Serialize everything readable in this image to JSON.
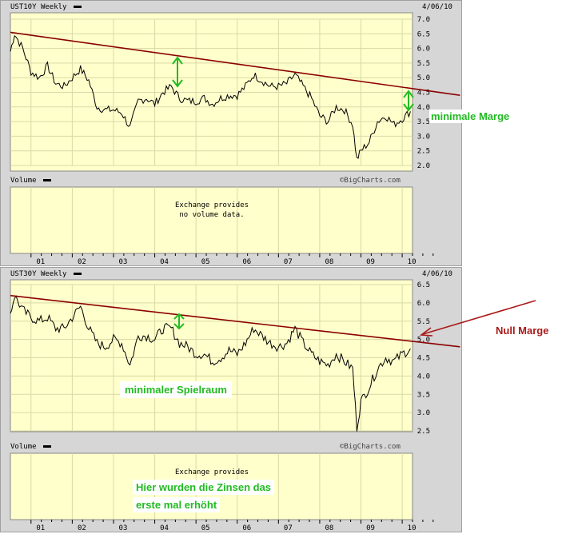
{
  "top_chart": {
    "symbol": "UST10Y",
    "period": "Weekly",
    "date": "4/06/10",
    "volume_label": "Volume",
    "brand": "©BigCharts.com",
    "no_volume_line1": "Exchange provides",
    "no_volume_line2": "no volume data."
  },
  "bottom_chart": {
    "symbol": "UST30Y",
    "period": "Weekly",
    "date": "4/06/10",
    "volume_label": "Volume",
    "brand": "©BigCharts.com",
    "no_volume_line1": "Exchange provides"
  },
  "annotations": {
    "minimale_marge": "minimale Marge",
    "null_marge": "Null Marge",
    "minimaler_spielraum": "minimaler Spielraum",
    "zinsen_line1": "Hier wurden die Zinsen das",
    "zinsen_line2": "erste mal erhöht"
  },
  "colors": {
    "plot_bg": "#ffffcc",
    "grid": "#d9d9a6",
    "price": "#000000",
    "trendline": "#8b0000",
    "arrow_green": "#22bb22",
    "annotation_red": "#aa1a1a"
  },
  "chart_data": [
    {
      "type": "line",
      "title": "UST10Y Weekly",
      "x_ticks": [
        "01",
        "02",
        "03",
        "04",
        "05",
        "06",
        "07",
        "08",
        "09",
        "10"
      ],
      "ylim": [
        2.0,
        7.0
      ],
      "yticks": [
        2.0,
        2.5,
        3.0,
        3.5,
        4.0,
        4.5,
        5.0,
        5.5,
        6.0,
        6.5,
        7.0
      ],
      "grid": true,
      "x": [
        2000.5,
        2000.6,
        2000.8,
        2001.0,
        2001.2,
        2001.4,
        2001.6,
        2001.8,
        2002.0,
        2002.2,
        2002.4,
        2002.6,
        2002.8,
        2003.0,
        2003.2,
        2003.4,
        2003.6,
        2003.8,
        2004.0,
        2004.2,
        2004.4,
        2004.6,
        2004.8,
        2005.0,
        2005.2,
        2005.4,
        2005.6,
        2005.8,
        2006.0,
        2006.2,
        2006.4,
        2006.6,
        2006.8,
        2007.0,
        2007.2,
        2007.4,
        2007.6,
        2007.8,
        2008.0,
        2008.2,
        2008.4,
        2008.6,
        2008.8,
        2008.9,
        2009.0,
        2009.2,
        2009.4,
        2009.6,
        2009.8,
        2010.0,
        2010.2
      ],
      "values": [
        5.9,
        6.5,
        6.0,
        5.2,
        5.0,
        5.4,
        4.8,
        4.7,
        5.0,
        5.3,
        4.9,
        4.0,
        3.9,
        3.9,
        3.8,
        3.3,
        4.2,
        4.3,
        4.1,
        4.5,
        4.7,
        4.3,
        4.2,
        4.2,
        4.3,
        4.1,
        4.3,
        4.4,
        4.4,
        4.7,
        5.1,
        4.9,
        4.7,
        4.7,
        4.8,
        5.1,
        4.7,
        4.3,
        3.7,
        3.5,
        4.0,
        3.9,
        3.4,
        2.2,
        2.5,
        2.8,
        3.5,
        3.7,
        3.4,
        3.6,
        3.85
      ],
      "trendline": {
        "x": [
          2000.5,
          2011.4
        ],
        "y": [
          6.55,
          4.4
        ]
      }
    },
    {
      "type": "line",
      "title": "UST30Y Weekly",
      "x_ticks": [
        "01",
        "02",
        "03",
        "04",
        "05",
        "06",
        "07",
        "08",
        "09",
        "10"
      ],
      "ylim": [
        2.5,
        6.5
      ],
      "yticks": [
        2.5,
        3.0,
        3.5,
        4.0,
        4.5,
        5.0,
        5.5,
        6.0,
        6.5
      ],
      "grid": true,
      "x": [
        2000.5,
        2000.6,
        2000.8,
        2001.0,
        2001.2,
        2001.4,
        2001.6,
        2001.8,
        2002.0,
        2002.2,
        2002.4,
        2002.6,
        2002.8,
        2003.0,
        2003.2,
        2003.4,
        2003.6,
        2003.8,
        2004.0,
        2004.2,
        2004.4,
        2004.6,
        2004.8,
        2005.0,
        2005.2,
        2005.4,
        2005.6,
        2005.8,
        2006.0,
        2006.2,
        2006.4,
        2006.6,
        2006.8,
        2007.0,
        2007.2,
        2007.4,
        2007.6,
        2007.8,
        2008.0,
        2008.2,
        2008.4,
        2008.6,
        2008.8,
        2008.9,
        2009.0,
        2009.2,
        2009.4,
        2009.6,
        2009.8,
        2010.0,
        2010.2
      ],
      "values": [
        5.7,
        6.2,
        5.8,
        5.6,
        5.5,
        5.6,
        5.3,
        5.3,
        5.6,
        5.9,
        5.3,
        4.9,
        4.8,
        5.0,
        4.9,
        4.3,
        5.1,
        5.1,
        5.0,
        5.3,
        5.3,
        4.9,
        4.8,
        4.6,
        4.6,
        4.4,
        4.5,
        4.7,
        4.6,
        4.9,
        5.3,
        5.1,
        4.9,
        4.8,
        4.9,
        5.3,
        4.9,
        4.6,
        4.4,
        4.3,
        4.6,
        4.4,
        4.2,
        2.6,
        3.3,
        3.7,
        4.2,
        4.5,
        4.4,
        4.6,
        4.75
      ],
      "trendline": {
        "x": [
          2000.5,
          2011.4
        ],
        "y": [
          6.2,
          4.8
        ]
      }
    }
  ]
}
